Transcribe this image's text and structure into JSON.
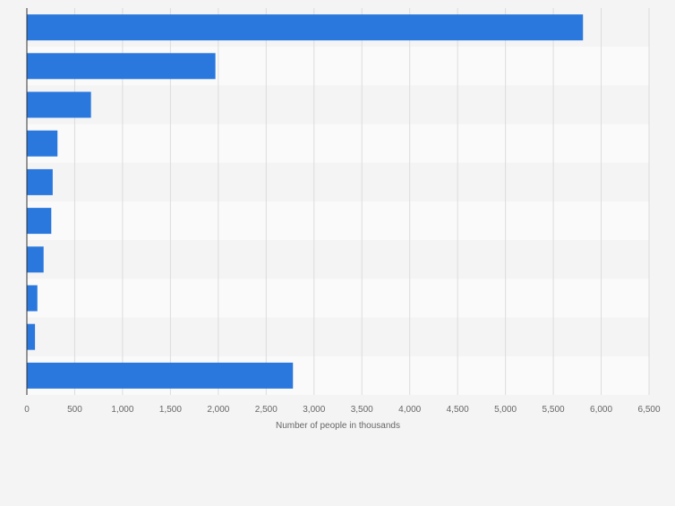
{
  "colors": {
    "background": "#f4f4f4",
    "band_light": "#fafafa",
    "band_dark": "#f4f4f4",
    "grid": "#dcdcdc",
    "bar": "#2a78dd",
    "axis": "#333333",
    "tick_text": "#666666"
  },
  "chart_data": {
    "type": "bar",
    "orientation": "horizontal",
    "title": "",
    "xlabel": "Number of people in thousands",
    "ylabel": "",
    "categories": [
      "",
      "",
      "",
      "",
      "",
      "",
      "",
      "",
      "",
      ""
    ],
    "values": [
      5810,
      1970,
      670,
      320,
      270,
      255,
      175,
      110,
      85,
      2780
    ],
    "xlim": [
      0,
      6500
    ],
    "xticks": [
      0,
      500,
      1000,
      1500,
      2000,
      2500,
      3000,
      3500,
      4000,
      4500,
      5000,
      5500,
      6000,
      6500
    ],
    "xtick_labels": [
      "0",
      "500",
      "1,000",
      "1,500",
      "2,000",
      "2,500",
      "3,000",
      "3,500",
      "4,000",
      "4,500",
      "5,000",
      "5,500",
      "6,000",
      "6,500"
    ],
    "grid": true,
    "legend": "none"
  }
}
